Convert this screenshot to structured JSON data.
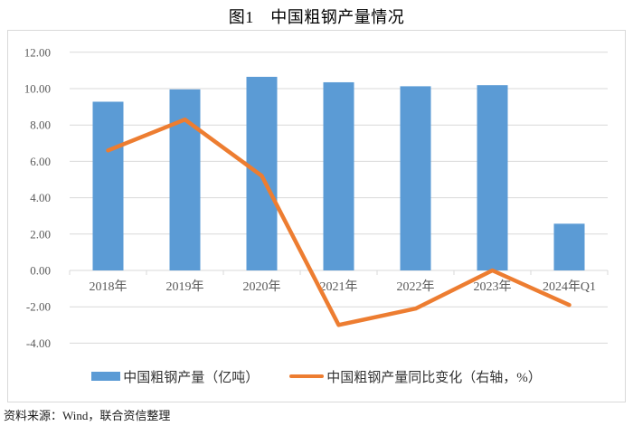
{
  "page": {
    "title": "图1　中国粗钢产量情况",
    "source_note": "资料来源：Wind，联合资信整理"
  },
  "colors": {
    "bar_blue": "#5B9BD5",
    "line_orange": "#ED7D31",
    "gridline": "#D9D9D9",
    "chart_border": "#D9D9D9",
    "axis_text": "#595959",
    "legend_text": "#333333",
    "background": "#FFFFFF"
  },
  "chart_data": {
    "type": "bar+line combo",
    "title": "图1　中国粗钢产量情况",
    "categories": [
      "2018年",
      "2019年",
      "2020年",
      "2021年",
      "2022年",
      "2023年",
      "2024年Q1"
    ],
    "series": [
      {
        "name": "中国粗钢产量（亿吨）",
        "type": "bar",
        "axis": "left",
        "color": "#5B9BD5",
        "values": [
          9.28,
          9.96,
          10.65,
          10.35,
          10.13,
          10.19,
          2.57
        ]
      },
      {
        "name": "中国粗钢产量同比变化（右轴，%）",
        "type": "line",
        "axis": "right",
        "color": "#ED7D31",
        "values": [
          6.6,
          8.3,
          5.2,
          -3.0,
          -2.1,
          0.0,
          -1.9
        ]
      }
    ],
    "y_axis": {
      "min": -4,
      "max": 12,
      "step": 2,
      "tick_labels": [
        "12.00",
        "10.00",
        "8.00",
        "6.00",
        "4.00",
        "2.00",
        "0.00",
        "-2.00",
        "-4.00"
      ]
    },
    "grid": true,
    "legend_position": "bottom"
  }
}
